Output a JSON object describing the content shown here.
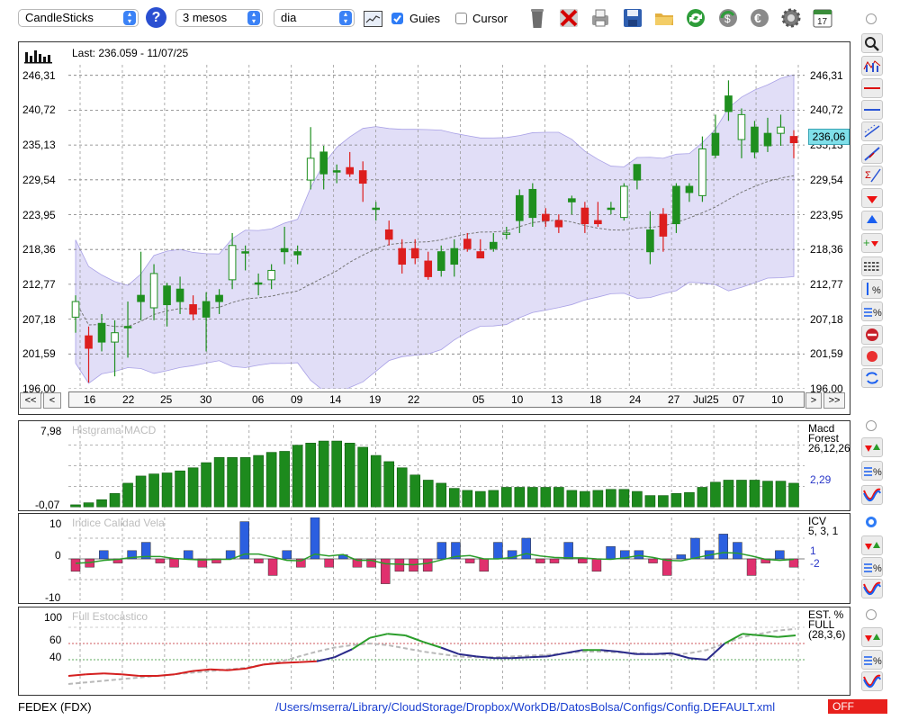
{
  "toolbar": {
    "chart_type": "CandleSticks",
    "help_icon": "?",
    "period": "3 mesos",
    "interval": "dia",
    "guides_label": "Guies",
    "guides_checked": true,
    "cursor_label": "Cursor",
    "cursor_checked": false,
    "calendar_day": "17"
  },
  "main_chart": {
    "last_label": "Last: 236.059 - 11/07/25",
    "price_tag": "236,06",
    "y_ticks": [
      "246,31",
      "240,72",
      "235,13",
      "229,54",
      "223,95",
      "218,36",
      "212,77",
      "207,18",
      "201,59",
      "196,00"
    ],
    "x_ticks": [
      "16",
      "22",
      "25",
      "30",
      "06",
      "09",
      "14",
      "19",
      "22",
      "05",
      "10",
      "13",
      "18",
      "24",
      "27",
      "Jul25",
      "07",
      "10"
    ],
    "nav_buttons": [
      "<<",
      "<",
      ">",
      ">>"
    ]
  },
  "macd": {
    "title": "Histgrama MACD",
    "y_top": "7,98",
    "y_bottom": "-0,07",
    "legend_name": "Macd",
    "legend_sub": "Forest",
    "params": "26,12,26",
    "value": "2,29",
    "bars": [
      0.2,
      0.4,
      0.7,
      1.3,
      2.3,
      3.0,
      3.2,
      3.3,
      3.5,
      3.8,
      4.3,
      4.8,
      4.8,
      4.8,
      5.0,
      5.3,
      5.4,
      6.0,
      6.2,
      6.4,
      6.4,
      6.2,
      5.8,
      5.0,
      4.4,
      3.8,
      3.1,
      2.6,
      2.3,
      1.8,
      1.6,
      1.5,
      1.6,
      1.9,
      1.9,
      1.9,
      1.9,
      1.9,
      1.6,
      1.5,
      1.6,
      1.7,
      1.7,
      1.5,
      1.1,
      1.1,
      1.3,
      1.4,
      1.9,
      2.4,
      2.6,
      2.6,
      2.6,
      2.5,
      2.5,
      2.3
    ]
  },
  "icv": {
    "title": "Indice Calidad Vela",
    "y_top": "10",
    "y_mid": "0",
    "y_bottom": "-10",
    "legend_name": "ICV",
    "params": "5, 3, 1",
    "value_pos": "1",
    "value_neg": "-2",
    "bars": [
      -3,
      -2,
      2,
      -1,
      2,
      4,
      -1,
      -2,
      2,
      -2,
      -1,
      2,
      9,
      -1,
      -4,
      2,
      -2,
      10,
      -2,
      1,
      -2,
      -2,
      -6,
      -3,
      -3,
      -3,
      4,
      4,
      -1,
      -3,
      4,
      2,
      5,
      -1,
      -1,
      4,
      -1,
      -3,
      3,
      2,
      2,
      -1,
      -4,
      1,
      5,
      2,
      6,
      4,
      -4,
      -1,
      2,
      -2
    ]
  },
  "stoch": {
    "title": "Full Estocastico",
    "y_ticks": [
      "100",
      "60",
      "40"
    ],
    "legend_name": "EST. %",
    "legend_sub": "FULL",
    "params": "(28,3,6)"
  },
  "footer": {
    "symbol": "FEDEX (FDX)",
    "path": "/Users/mserra/Library/CloudStorage/Dropbox/WorkDB/DatosBolsa/Configs/Config.DEFAULT.xml",
    "status": "OFF"
  },
  "colors": {
    "up_candle": "#1f8f1f",
    "down_candle": "#dd1e1e",
    "band_fill": "#c9c3f0",
    "macd_bar": "#1d8a1d",
    "icv_pos": "#2b5fe0",
    "icv_neg": "#e0306e",
    "off_badge": "#e8201c"
  },
  "chart_data": [
    {
      "type": "candlestick",
      "title": "",
      "ylim": [
        196.0,
        248.0
      ],
      "y_ticks": [
        246.31,
        240.72,
        235.13,
        229.54,
        223.95,
        218.36,
        212.77,
        207.18,
        201.59,
        196.0
      ],
      "last": 236.059,
      "candles": [
        {
          "o": 207.5,
          "h": 211.0,
          "l": 205.0,
          "c": 210.0
        },
        {
          "o": 204.5,
          "h": 206.0,
          "l": 197.0,
          "c": 202.5
        },
        {
          "o": 203.5,
          "h": 208.0,
          "l": 202.0,
          "c": 206.5
        },
        {
          "o": 203.5,
          "h": 207.0,
          "l": 198.0,
          "c": 205.0
        },
        {
          "o": 206.0,
          "h": 210.0,
          "l": 201.0,
          "c": 206.0
        },
        {
          "o": 210.0,
          "h": 218.0,
          "l": 207.0,
          "c": 211.0
        },
        {
          "o": 209.0,
          "h": 216.0,
          "l": 207.0,
          "c": 214.5
        },
        {
          "o": 209.5,
          "h": 213.0,
          "l": 206.0,
          "c": 212.5
        },
        {
          "o": 210.0,
          "h": 214.0,
          "l": 208.0,
          "c": 212.0
        },
        {
          "o": 209.5,
          "h": 211.0,
          "l": 207.0,
          "c": 208.0
        },
        {
          "o": 207.5,
          "h": 211.5,
          "l": 202.0,
          "c": 210.0
        },
        {
          "o": 210.0,
          "h": 212.0,
          "l": 208.0,
          "c": 211.0
        },
        {
          "o": 213.5,
          "h": 221.0,
          "l": 212.0,
          "c": 219.0
        },
        {
          "o": 218.0,
          "h": 219.0,
          "l": 215.0,
          "c": 218.0
        },
        {
          "o": 213.0,
          "h": 214.5,
          "l": 211.0,
          "c": 213.0
        },
        {
          "o": 213.5,
          "h": 216.0,
          "l": 212.0,
          "c": 215.0
        },
        {
          "o": 218.0,
          "h": 222.0,
          "l": 216.0,
          "c": 218.5
        },
        {
          "o": 217.5,
          "h": 219.0,
          "l": 216.0,
          "c": 218.0
        },
        {
          "o": 229.5,
          "h": 238.0,
          "l": 228.0,
          "c": 233.0
        },
        {
          "o": 230.5,
          "h": 235.0,
          "l": 228.0,
          "c": 234.0
        },
        {
          "o": 231.0,
          "h": 232.0,
          "l": 229.0,
          "c": 231.0
        },
        {
          "o": 231.5,
          "h": 234.0,
          "l": 230.0,
          "c": 230.5
        },
        {
          "o": 231.0,
          "h": 232.5,
          "l": 226.0,
          "c": 229.0
        },
        {
          "o": 225.0,
          "h": 226.0,
          "l": 223.0,
          "c": 225.0
        },
        {
          "o": 221.5,
          "h": 223.0,
          "l": 219.0,
          "c": 220.0
        },
        {
          "o": 218.5,
          "h": 220.0,
          "l": 214.5,
          "c": 216.0
        },
        {
          "o": 218.5,
          "h": 220.0,
          "l": 216.0,
          "c": 217.0
        },
        {
          "o": 216.5,
          "h": 218.0,
          "l": 213.5,
          "c": 214.0
        },
        {
          "o": 215.0,
          "h": 219.0,
          "l": 214.0,
          "c": 218.0
        },
        {
          "o": 216.0,
          "h": 220.0,
          "l": 214.0,
          "c": 218.5
        },
        {
          "o": 220.0,
          "h": 221.0,
          "l": 218.0,
          "c": 218.5
        },
        {
          "o": 218.0,
          "h": 220.0,
          "l": 217.0,
          "c": 217.0
        },
        {
          "o": 218.5,
          "h": 221.0,
          "l": 218.0,
          "c": 219.5
        },
        {
          "o": 221.0,
          "h": 222.0,
          "l": 220.0,
          "c": 221.0
        },
        {
          "o": 223.0,
          "h": 228.0,
          "l": 221.0,
          "c": 227.0
        },
        {
          "o": 223.5,
          "h": 229.0,
          "l": 222.0,
          "c": 228.0
        },
        {
          "o": 224.0,
          "h": 225.0,
          "l": 222.0,
          "c": 223.0
        },
        {
          "o": 223.0,
          "h": 224.0,
          "l": 221.0,
          "c": 222.0
        },
        {
          "o": 226.0,
          "h": 227.0,
          "l": 224.0,
          "c": 226.5
        },
        {
          "o": 225.0,
          "h": 226.0,
          "l": 221.0,
          "c": 222.5
        },
        {
          "o": 223.0,
          "h": 226.0,
          "l": 222.0,
          "c": 222.5
        },
        {
          "o": 225.0,
          "h": 226.0,
          "l": 224.0,
          "c": 225.0
        },
        {
          "o": 223.5,
          "h": 229.0,
          "l": 223.0,
          "c": 228.5
        },
        {
          "o": 229.5,
          "h": 232.0,
          "l": 228.0,
          "c": 232.0
        },
        {
          "o": 218.0,
          "h": 224.5,
          "l": 216.0,
          "c": 221.5
        },
        {
          "o": 224.0,
          "h": 225.0,
          "l": 218.0,
          "c": 220.5
        },
        {
          "o": 222.5,
          "h": 229.0,
          "l": 221.0,
          "c": 228.5
        },
        {
          "o": 227.5,
          "h": 229.0,
          "l": 226.0,
          "c": 228.5
        },
        {
          "o": 227.0,
          "h": 236.5,
          "l": 226.0,
          "c": 234.5
        },
        {
          "o": 233.5,
          "h": 240.0,
          "l": 233.0,
          "c": 237.0
        },
        {
          "o": 240.5,
          "h": 245.5,
          "l": 239.0,
          "c": 243.0
        },
        {
          "o": 236.0,
          "h": 241.0,
          "l": 233.0,
          "c": 240.0
        },
        {
          "o": 234.0,
          "h": 239.0,
          "l": 233.0,
          "c": 238.0
        },
        {
          "o": 235.0,
          "h": 239.5,
          "l": 234.0,
          "c": 237.0
        },
        {
          "o": 237.0,
          "h": 240.0,
          "l": 235.0,
          "c": 238.0
        },
        {
          "o": 236.5,
          "h": 237.5,
          "l": 233.0,
          "c": 235.5
        }
      ]
    },
    {
      "type": "bar",
      "title": "Histgrama MACD",
      "ylim": [
        -0.07,
        7.98
      ],
      "series": [
        {
          "name": "Macd Forest 26,12,26",
          "values": "see macd.bars"
        }
      ]
    },
    {
      "type": "bar",
      "title": "Indice Calidad Vela",
      "ylim": [
        -10,
        10
      ],
      "series": [
        {
          "name": "ICV 5, 3, 1",
          "values": "see icv.bars"
        }
      ]
    },
    {
      "type": "line",
      "title": "Full Estocastico",
      "ylim": [
        0,
        100
      ],
      "series": [
        {
          "name": "%K",
          "values": [
            20,
            22,
            23,
            22,
            20,
            20,
            22,
            26,
            28,
            27,
            29,
            34,
            36,
            37,
            38,
            43,
            53,
            67,
            72,
            70,
            62,
            55,
            47,
            44,
            42,
            42,
            43,
            44,
            48,
            52,
            52,
            50,
            47,
            47,
            48,
            42,
            40,
            60,
            72,
            70,
            68,
            70
          ]
        },
        {
          "name": "%D",
          "values": [
            10,
            12,
            14,
            16,
            18,
            20,
            22,
            24,
            26,
            28,
            30,
            34,
            38,
            44,
            50,
            55,
            58,
            60,
            58,
            54,
            50,
            47,
            44,
            43,
            43,
            44,
            45,
            46,
            48,
            50,
            50,
            49,
            48,
            47,
            46,
            48,
            52,
            60,
            68,
            72,
            76,
            78
          ]
        }
      ]
    }
  ]
}
